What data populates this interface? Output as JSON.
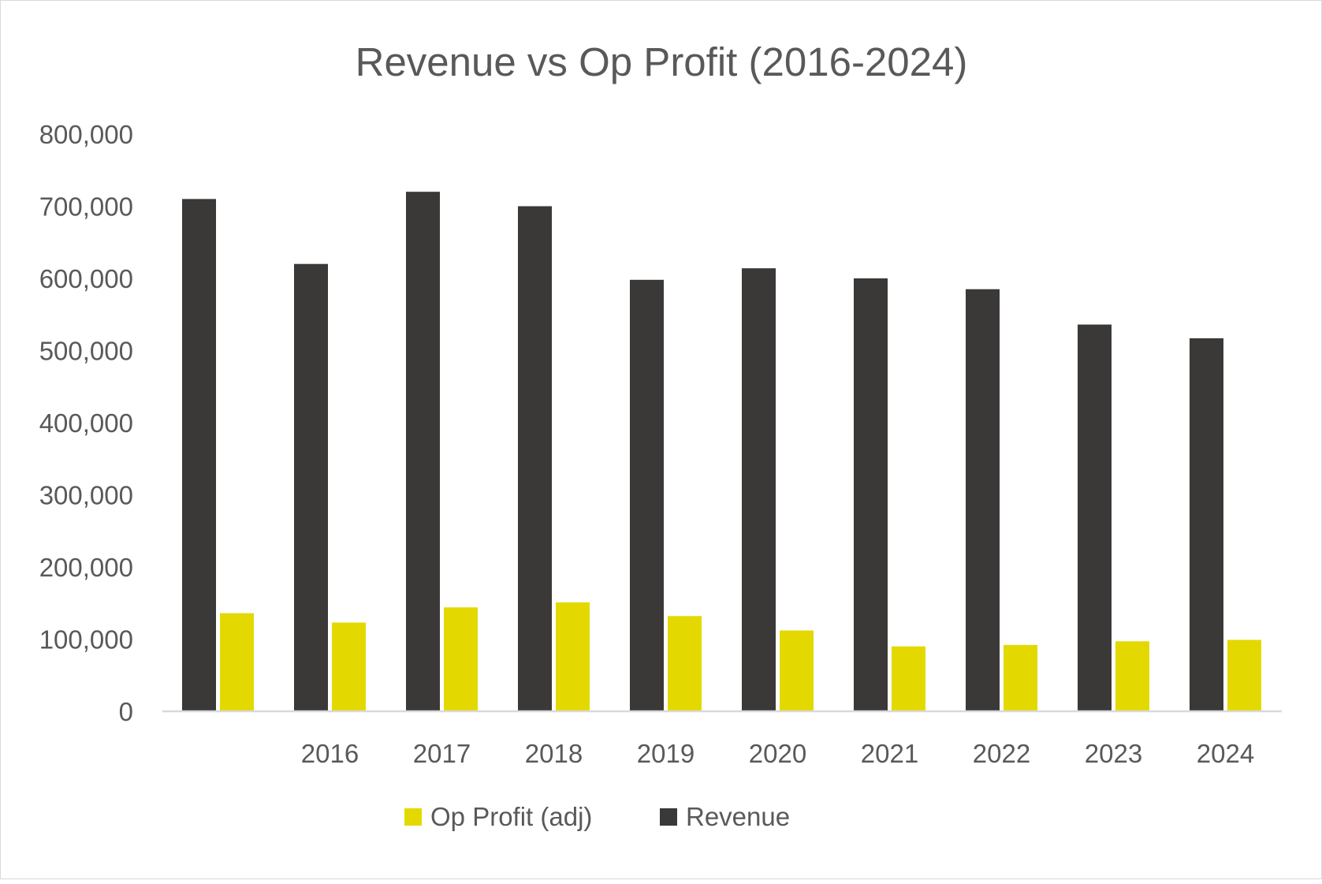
{
  "chart_data": {
    "type": "bar",
    "title": "Revenue vs Op  Profit (2016-2024)",
    "xlabel": "",
    "ylabel": "",
    "categories": [
      "",
      "2016",
      "2017",
      "2018",
      "2019",
      "2020",
      "2021",
      "2022",
      "2023",
      "2024"
    ],
    "series": [
      {
        "name": "Revenue",
        "color": "#3a3938",
        "values": [
          710000,
          620000,
          720000,
          700000,
          598000,
          614000,
          600000,
          585000,
          536000,
          517000
        ]
      },
      {
        "name": "Op Profit (adj)",
        "color": "#e3d900",
        "values": [
          136000,
          123000,
          144000,
          151000,
          132000,
          112000,
          90000,
          92000,
          97000,
          99000
        ]
      }
    ],
    "ylim": [
      0,
      800000
    ],
    "yticks": [
      "0",
      "100,000",
      "200,000",
      "300,000",
      "400,000",
      "500,000",
      "600,000",
      "700,000",
      "800,000"
    ],
    "grid": false,
    "legend": {
      "position": "bottom",
      "entries": [
        "Op Profit (adj)",
        "Revenue"
      ]
    }
  }
}
